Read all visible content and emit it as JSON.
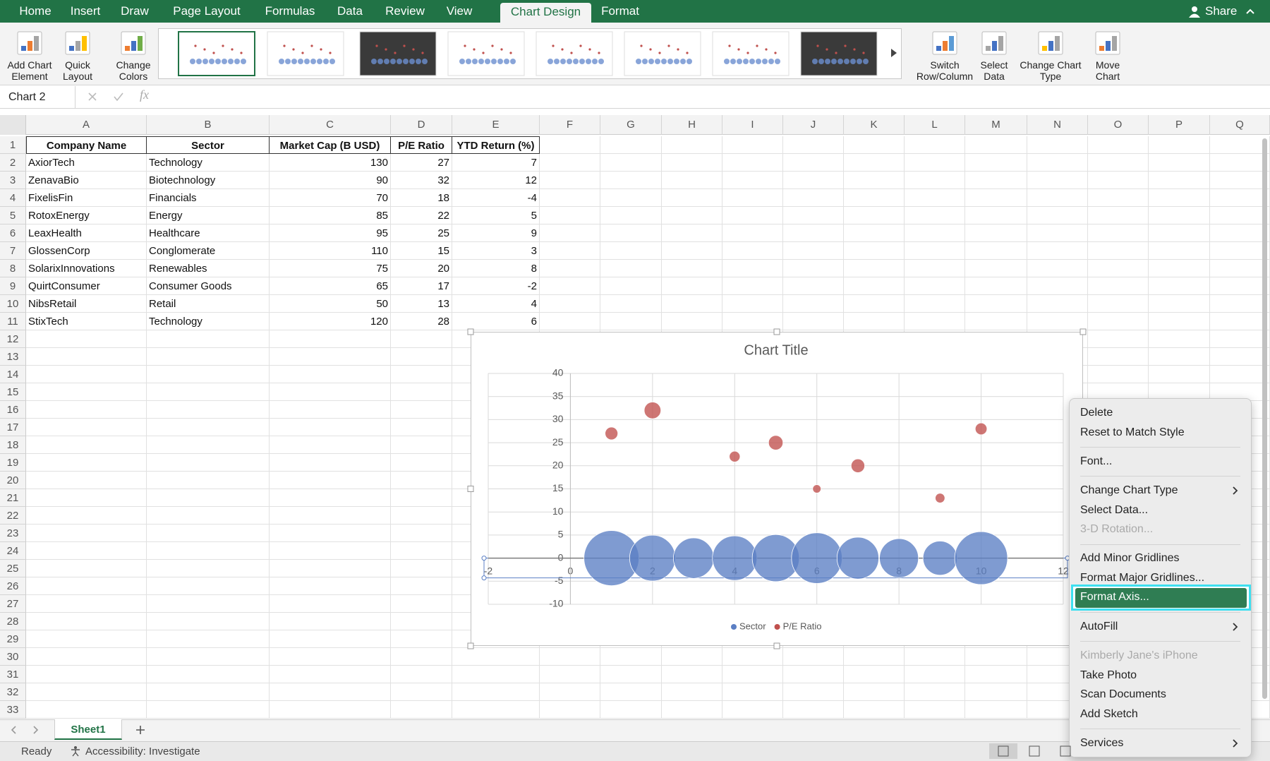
{
  "ribbon": {
    "tabs": [
      "Home",
      "Insert",
      "Draw",
      "Page Layout",
      "Formulas",
      "Data",
      "Review",
      "View",
      "Chart Design",
      "Format"
    ],
    "active_tab": "Chart Design",
    "share": "Share",
    "buttons": [
      "Add Chart Element",
      "Quick Layout",
      "Change Colors",
      "Switch Row/Column",
      "Select Data",
      "Change Chart Type",
      "Move Chart"
    ]
  },
  "formula_bar": {
    "name_box": "Chart 2",
    "fx": "fx"
  },
  "sheet": {
    "columns": [
      "A",
      "B",
      "C",
      "D",
      "E",
      "F",
      "G",
      "H",
      "I",
      "J",
      "K",
      "L",
      "M",
      "N",
      "O",
      "P",
      "Q"
    ],
    "rows": [
      1,
      2,
      3,
      4,
      5,
      6,
      7,
      8,
      9,
      10,
      11,
      12,
      13,
      14,
      15,
      16,
      17,
      18,
      19,
      20,
      21,
      22,
      23,
      24,
      25,
      26,
      27,
      28,
      29,
      30,
      31,
      32,
      33
    ]
  },
  "table": {
    "header": [
      "Company Name",
      "Sector",
      "Market Cap (B USD)",
      "P/E Ratio",
      "YTD Return (%)"
    ],
    "rows": [
      [
        "AxiorTech",
        "Technology",
        130,
        27,
        7
      ],
      [
        "ZenavaBio",
        "Biotechnology",
        90,
        32,
        12
      ],
      [
        "FixelisFin",
        "Financials",
        70,
        18,
        -4
      ],
      [
        "RotoxEnergy",
        "Energy",
        85,
        22,
        5
      ],
      [
        "LeaxHealth",
        "Healthcare",
        95,
        25,
        9
      ],
      [
        "GlossenCorp",
        "Conglomerate",
        110,
        15,
        3
      ],
      [
        "SolarixInnovations",
        "Renewables",
        75,
        20,
        8
      ],
      [
        "QuirtConsumer",
        "Consumer Goods",
        65,
        17,
        -2
      ],
      [
        "NibsRetail",
        "Retail",
        50,
        13,
        4
      ],
      [
        "StixTech",
        "Technology",
        120,
        28,
        6
      ]
    ]
  },
  "chart_data": {
    "type": "bubble",
    "title": "Chart Title",
    "xlim": [
      -2,
      12
    ],
    "xticks": [
      -2,
      0,
      2,
      4,
      6,
      8,
      10,
      12
    ],
    "ylim": [
      -10,
      40
    ],
    "yticks": [
      -10,
      -5,
      0,
      5,
      10,
      15,
      20,
      25,
      30,
      35,
      40
    ],
    "grid": true,
    "legend": "bottom",
    "series": [
      {
        "name": "Sector",
        "color": "#5b7fc4",
        "x": [
          1,
          2,
          3,
          4,
          5,
          6,
          7,
          8,
          9,
          10
        ],
        "values": [
          0,
          0,
          0,
          0,
          0,
          0,
          0,
          0,
          0,
          0
        ],
        "sizes": [
          130,
          90,
          70,
          85,
          95,
          110,
          75,
          65,
          50,
          120
        ]
      },
      {
        "name": "P/E Ratio",
        "color": "#c0504d",
        "x": [
          1,
          2,
          4,
          5,
          6,
          7,
          9,
          10
        ],
        "values": [
          27,
          32,
          22,
          25,
          15,
          20,
          13,
          28
        ],
        "sizes": [
          7,
          12,
          5,
          9,
          3,
          8,
          4,
          6
        ]
      }
    ]
  },
  "context_menu": {
    "groups": [
      [
        {
          "label": "Delete"
        },
        {
          "label": "Reset to Match Style"
        }
      ],
      [
        {
          "label": "Font..."
        }
      ],
      [
        {
          "label": "Change Chart Type",
          "submenu": true
        },
        {
          "label": "Select Data..."
        },
        {
          "label": "3-D Rotation...",
          "disabled": true
        }
      ],
      [
        {
          "label": "Add Minor Gridlines"
        },
        {
          "label": "Format Major Gridlines..."
        },
        {
          "label": "Format Axis...",
          "highlighted": true
        }
      ],
      [
        {
          "label": "AutoFill",
          "submenu": true
        }
      ],
      [
        {
          "label": "Kimberly Jane's iPhone",
          "disabled": true
        },
        {
          "label": "Take Photo"
        },
        {
          "label": "Scan Documents"
        },
        {
          "label": "Add Sketch"
        }
      ],
      [
        {
          "label": "Services",
          "submenu": true
        }
      ]
    ]
  },
  "sheet_tabs": {
    "tabs": [
      "Sheet1"
    ]
  },
  "status_bar": {
    "status": "Ready",
    "accessibility": "Accessibility: Investigate"
  }
}
